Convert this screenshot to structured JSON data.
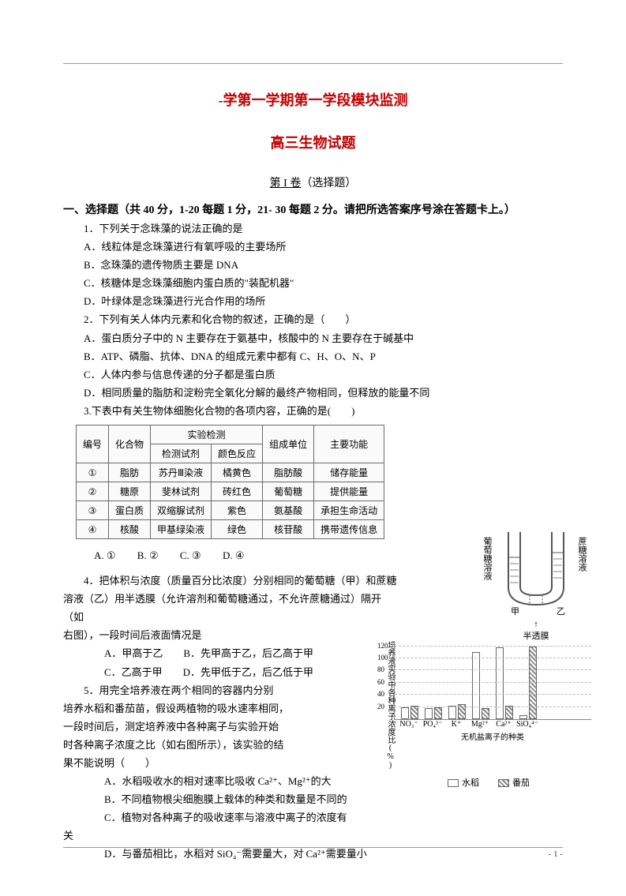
{
  "header": {
    "title_main": "-学第一学期第一学段模块监测",
    "title_sub": "高三生物试题",
    "section_label_a": "第 I 卷",
    "section_label_b": "（选择题）",
    "instructions": "一、选择题（共 40 分，1-20 每题 1 分，21- 30 每题 2 分。请把所选答案序号涂在答题卡上。）"
  },
  "q1": {
    "stem": "1．下列关于念珠藻的说法正确的是",
    "A": "A．线粒体是念珠藻进行有氧呼吸的主要场所",
    "B": "B．念珠藻的遗传物质主要是 DNA",
    "C": "C．核糖体是念珠藻细胞内蛋白质的\"装配机器\"",
    "D": "D．叶绿体是念珠藻进行光合作用的场所"
  },
  "q2": {
    "stem": "2．下列有关人体内元素和化合物的叙述，正确的是（　　）",
    "A": "A．蛋白质分子中的 N 主要存在于氨基中，核酸中的 N 主要存在于碱基中",
    "B": "B．ATP、磷脂、抗体、DNA 的组成元素中都有 C、H、O、N、P",
    "C": "C．人体内参与信息传递的分子都是蛋白质",
    "D": "D．相同质量的脂肪和淀粉完全氧化分解的最终产物相同，但释放的能量不同"
  },
  "q3": {
    "stem": "3.下表中有关生物体细胞化合物的各项内容，正确的是(　　)",
    "table": {
      "columns": [
        "编号",
        "化合物",
        "检测试剂",
        "颜色反应",
        "组成单位",
        "主要功能"
      ],
      "header_group": "实验检测",
      "rows": [
        [
          "①",
          "脂肪",
          "苏丹Ⅲ染液",
          "橘黄色",
          "脂肪酸",
          "储存能量"
        ],
        [
          "②",
          "糖原",
          "斐林试剂",
          "砖红色",
          "葡萄糖",
          "提供能量"
        ],
        [
          "③",
          "蛋白质",
          "双缩脲试剂",
          "紫色",
          "氨基酸",
          "承担生命活动"
        ],
        [
          "④",
          "核酸",
          "甲基绿染液",
          "绿色",
          "核苷酸",
          "携带遗传信息"
        ]
      ]
    },
    "opts": {
      "A": "A. ①",
      "B": "B. ②",
      "C": "C. ③",
      "D": "D. ④"
    }
  },
  "q4": {
    "l1": "　　4．把体积与浓度（质量百分比浓度）分别相同的葡萄糖（甲）和蔗糖",
    "l2": "溶液（乙）用半透膜（允许溶剂和葡萄糖通过，不允许蔗糖通过）隔开",
    "l3": "（如",
    "l4": "右图），一段时间后液面情况是",
    "A": "A．甲高于乙　　B．先甲高于乙，后乙高于甲",
    "C": "C．乙高于甲　　D．先甲低于乙，后乙低于甲"
  },
  "q5": {
    "l1": "　　5．用完全培养液在两个相同的容器内分别",
    "l2": "培养水稻和番茄苗，假设两植物的吸水速率相同，",
    "l3": "一段时间后，测定培养液中各种离子与实验开始",
    "l4": "时各种离子浓度之比（如右图所示），该实验的结",
    "l5": "果不能说明（　　）",
    "A": "A．水稻吸收水的相对速率比吸收 Ca²⁺、Mg²⁺的大",
    "B": "B．不同植物根尖细胞膜上载体的种类和数量是不同的",
    "C": "C．植物对各种离子的吸收速率与溶液中离子的浓度有",
    "Cx": "关",
    "D": "D．与番茄相比，水稻对 SiO₄⁻需要量大，对 Ca²⁺需要量小"
  },
  "fig_utube": {
    "left_label": "葡萄糖溶液",
    "right_label": "蔗糖溶液",
    "left_mark": "甲",
    "right_mark": "乙",
    "bottom_label": "半透膜"
  },
  "fig_chart": {
    "y_axis_label": "培养液实验中各种离子浓度比(%)",
    "y_ticks": [
      20,
      40,
      60,
      80,
      100,
      120
    ],
    "x_title": "无机盐离子的种类",
    "categories": [
      "NO₃⁻",
      "PO₄³⁻",
      "K⁺",
      "Mg²⁺",
      "Ca²⁺",
      "SiO₄⁴⁻"
    ],
    "series_a_label": "水稻",
    "series_b_label": "番茄",
    "series_a": [
      20,
      18,
      22,
      110,
      118,
      6
    ],
    "series_b": [
      22,
      20,
      25,
      18,
      22,
      120
    ],
    "bar_color_a": "#ffffff",
    "bar_color_b_hatch": "#888888",
    "border_color": "#666666",
    "grid_color": "#bbbbbb",
    "ymax": 130
  },
  "footer": {
    "page": "- 1 -"
  }
}
